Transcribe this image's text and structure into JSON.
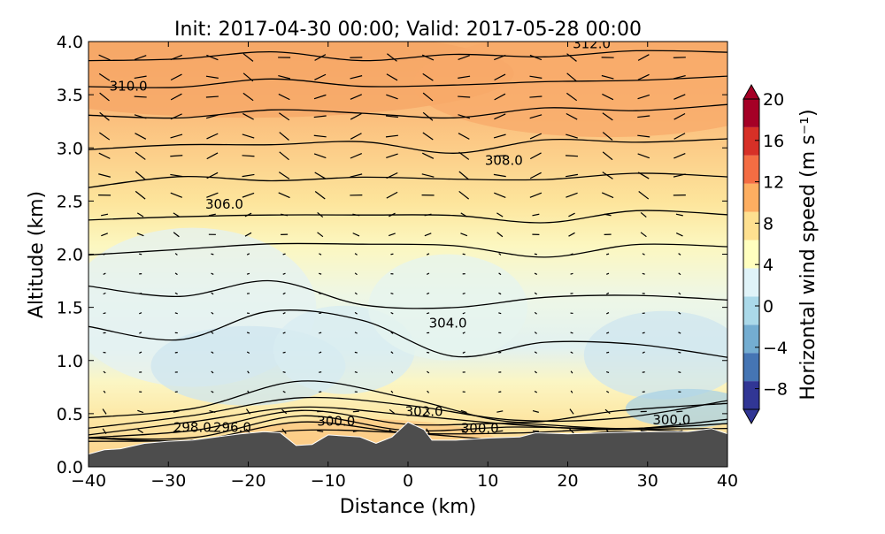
{
  "chart_data": {
    "type": "contour-cross-section",
    "title": "Init: 2017-04-30 00:00; Valid: 2017-05-28 00:00",
    "xlabel": "Distance (km)",
    "ylabel": "Altitude (km)",
    "xlim": [
      -40,
      40
    ],
    "ylim": [
      0.0,
      4.0
    ],
    "x_ticks": [
      -40,
      -30,
      -20,
      -10,
      0,
      10,
      20,
      30,
      40
    ],
    "x_tick_labels": [
      "−40",
      "−30",
      "−20",
      "−10",
      "0",
      "10",
      "20",
      "30",
      "40"
    ],
    "y_ticks": [
      0.0,
      0.5,
      1.0,
      1.5,
      2.0,
      2.5,
      3.0,
      3.5,
      4.0
    ],
    "y_tick_labels": [
      "0.0",
      "0.5",
      "1.0",
      "1.5",
      "2.0",
      "2.5",
      "3.0",
      "3.5",
      "4.0"
    ],
    "colorbar": {
      "label": "Horizontal wind speed (m s⁻¹)",
      "range": [
        -10,
        20
      ],
      "ticks": [
        20,
        16,
        12,
        8,
        4,
        0,
        -4,
        -8
      ],
      "tick_labels": [
        "20",
        "16",
        "12",
        "8",
        "4",
        "0",
        "−4",
        "−8"
      ],
      "colors": [
        "#313695",
        "#4575b4",
        "#74add1",
        "#abd9e9",
        "#e0f3f8",
        "#ffffbf",
        "#fee090",
        "#fdae61",
        "#f46d43",
        "#d73027",
        "#a50026"
      ]
    },
    "terrain": {
      "x": [
        -40,
        -38,
        -36,
        -33,
        -30,
        -27,
        -24,
        -21,
        -18,
        -16,
        -14,
        -12,
        -10,
        -8,
        -6,
        -4,
        -2,
        0,
        2,
        3,
        6,
        10,
        14,
        16,
        20,
        25,
        30,
        35,
        38,
        40
      ],
      "y": [
        0.12,
        0.16,
        0.17,
        0.22,
        0.24,
        0.25,
        0.28,
        0.31,
        0.33,
        0.32,
        0.2,
        0.21,
        0.3,
        0.29,
        0.28,
        0.22,
        0.28,
        0.42,
        0.35,
        0.25,
        0.25,
        0.27,
        0.28,
        0.32,
        0.31,
        0.32,
        0.33,
        0.33,
        0.36,
        0.31
      ],
      "color": "#4d4d4d"
    },
    "contour_lines": [
      {
        "level": 296.0,
        "y": [
          0.22,
          0.26,
          0.35,
          0.3,
          0.28,
          0.3,
          0.28
        ]
      },
      {
        "level": 297.0,
        "y": [
          0.24,
          0.28,
          0.4,
          0.33,
          0.32,
          0.34,
          0.33
        ]
      },
      {
        "level": 298.0,
        "y": [
          0.26,
          0.3,
          0.45,
          0.37,
          0.35,
          0.37,
          0.36
        ]
      },
      {
        "level": 299.0,
        "y": [
          0.29,
          0.34,
          0.52,
          0.42,
          0.38,
          0.39,
          0.38
        ]
      },
      {
        "level": 300.0,
        "y": [
          0.33,
          0.4,
          0.58,
          0.48,
          0.39,
          0.37,
          0.42
        ]
      },
      {
        "level": 301.0,
        "y": [
          0.38,
          0.46,
          0.68,
          0.55,
          0.46,
          0.45,
          0.62
        ]
      },
      {
        "level": 302.0,
        "y": [
          0.45,
          0.55,
          0.82,
          0.62,
          0.45,
          0.5,
          0.62
        ]
      },
      {
        "level": 303.0,
        "y": [
          1.29,
          1.22,
          1.45,
          1.38,
          1.05,
          1.15,
          1.18,
          1.0
        ]
      },
      {
        "level": 304.0,
        "y": [
          1.68,
          1.63,
          1.72,
          1.55,
          1.48,
          1.6,
          1.62,
          1.55
        ]
      },
      {
        "level": 305.0,
        "y": [
          2.0,
          2.05,
          2.08,
          2.12,
          2.05,
          2.0,
          2.07,
          2.08
        ]
      },
      {
        "level": 306.0,
        "y": [
          2.35,
          2.33,
          2.38,
          2.37,
          2.35,
          2.32,
          2.38,
          2.4
        ]
      },
      {
        "level": 307.0,
        "y": [
          2.65,
          2.7,
          2.72,
          2.7,
          2.72,
          2.7,
          2.75,
          2.75
        ]
      },
      {
        "level": 308.0,
        "y": [
          2.98,
          3.02,
          3.05,
          3.03,
          2.98,
          3.05,
          3.07,
          3.08
        ]
      },
      {
        "level": 309.0,
        "y": [
          3.28,
          3.3,
          3.35,
          3.32,
          3.3,
          3.35,
          3.38,
          3.38
        ]
      },
      {
        "level": 310.0,
        "y": [
          3.55,
          3.6,
          3.62,
          3.6,
          3.58,
          3.62,
          3.65,
          3.65
        ]
      },
      {
        "level": 311.0,
        "y": [
          3.82,
          3.85,
          3.88,
          3.85,
          3.85,
          3.88,
          3.9,
          3.9
        ]
      }
    ],
    "contour_labels": [
      {
        "text": "310.0",
        "x": -35,
        "y": 3.58
      },
      {
        "text": "312.0",
        "x": 23,
        "y": 3.98
      },
      {
        "text": "308.0",
        "x": 12,
        "y": 2.88
      },
      {
        "text": "306.0",
        "x": -23,
        "y": 2.47
      },
      {
        "text": "304.0",
        "x": 5,
        "y": 1.35
      },
      {
        "text": "302.0",
        "x": 2,
        "y": 0.52
      },
      {
        "text": "300.0",
        "x": -9,
        "y": 0.43
      },
      {
        "text": "300.0",
        "x": 9,
        "y": 0.36
      },
      {
        "text": "300.0",
        "x": 33,
        "y": 0.44
      },
      {
        "text": "298.0",
        "x": -27,
        "y": 0.37
      },
      {
        "text": "296.0",
        "x": -22,
        "y": 0.37
      }
    ],
    "wind_field_note": "Filled contours of horizontal wind speed (m s-1): about 8-12 near 4 km, near 0 to -4 between 0.6 and 2.0 km, and weak negative values near the surface east of 20 km; black quiver arrows show wind direction."
  }
}
